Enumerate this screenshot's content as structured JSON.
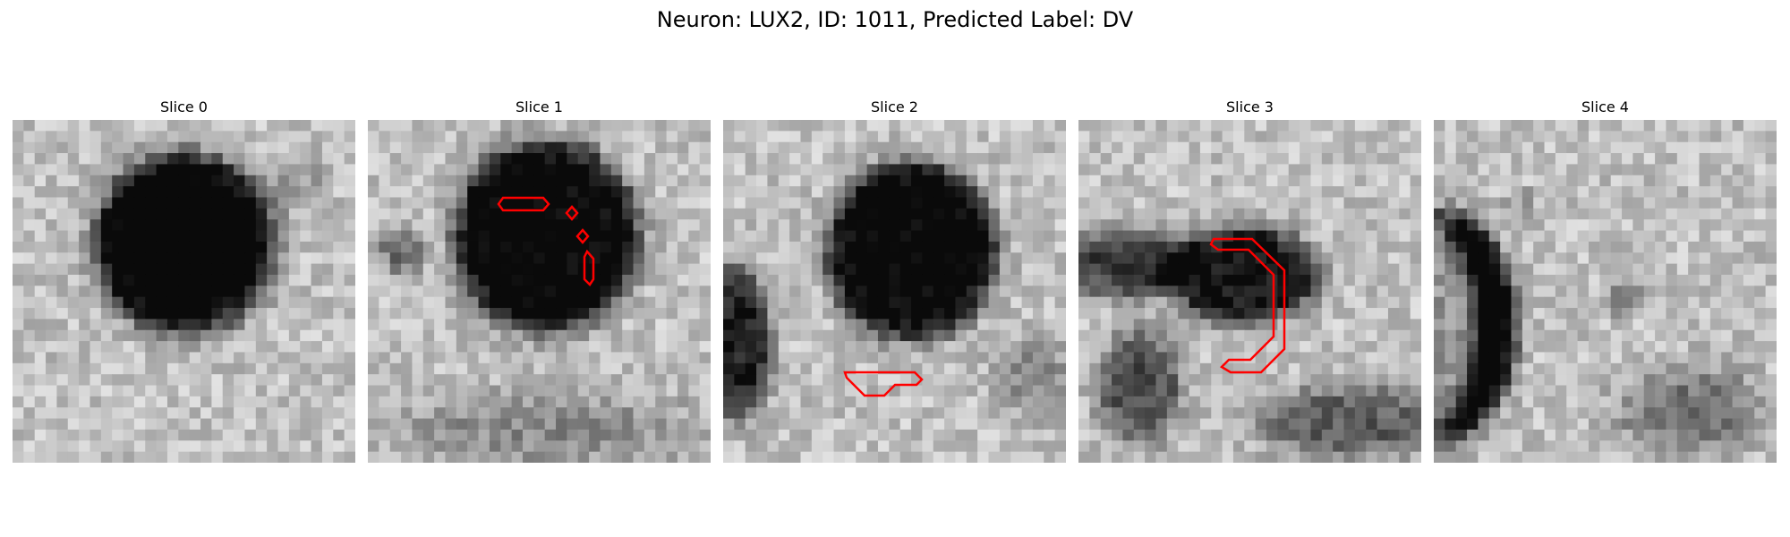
{
  "figure": {
    "title": "Neuron: LUX2, ID: 1011, Predicted Label: DV"
  },
  "colormap": "gray",
  "contour_color": "#ff0000",
  "slices": [
    {
      "label": "Slice 0"
    },
    {
      "label": "Slice 1"
    },
    {
      "label": "Slice 2"
    },
    {
      "label": "Slice 3"
    },
    {
      "label": "Slice 4"
    }
  ]
}
